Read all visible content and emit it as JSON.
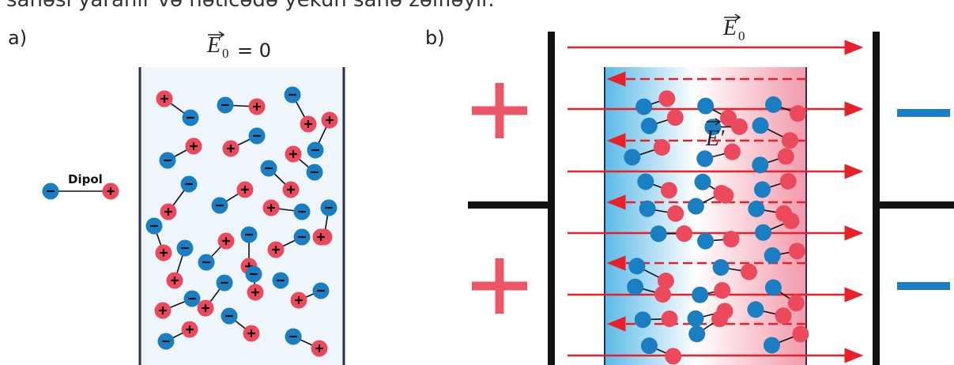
{
  "caption": "sahəsi yaranır və nəticədə yekun sahə zəifləyir.",
  "panel_a": {
    "label": "a)",
    "field_symbol": "E",
    "field_subscript": "0",
    "field_value": "= 0",
    "dipole_label": "Dipol"
  },
  "panel_b": {
    "label": "b)",
    "field_symbol": "E",
    "field_subscript": "0",
    "induced_field": "E′"
  }
}
